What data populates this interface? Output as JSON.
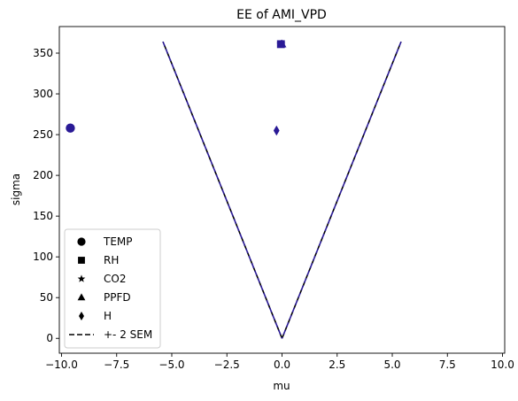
{
  "chart_data": {
    "type": "scatter",
    "title": "EE of AMI_VPD",
    "xlabel": "mu",
    "ylabel": "sigma",
    "xlim": [
      -10.1,
      10.1
    ],
    "ylim": [
      -18.2,
      382.6
    ],
    "xticks": [
      -10.0,
      -7.5,
      -5.0,
      -2.5,
      0.0,
      2.5,
      5.0,
      7.5,
      10.0
    ],
    "xtick_labels": [
      "−10.0",
      "−7.5",
      "−5.0",
      "−2.5",
      "0.0",
      "2.5",
      "5.0",
      "7.5",
      "10.0"
    ],
    "yticks": [
      0,
      50,
      100,
      150,
      200,
      250,
      300,
      350
    ],
    "ytick_labels": [
      "0",
      "50",
      "100",
      "150",
      "200",
      "250",
      "300",
      "350"
    ],
    "grid": false,
    "legend_position": "lower-left",
    "marker_color": "#2a1a96",
    "series": [
      {
        "name": "TEMP",
        "marker": "circle",
        "x": [
          -9.6
        ],
        "y": [
          258
        ]
      },
      {
        "name": "RH",
        "marker": "square",
        "x": [
          -0.05
        ],
        "y": [
          361
        ]
      },
      {
        "name": "CO2",
        "marker": "star",
        "x": [
          -0.05
        ],
        "y": [
          361
        ]
      },
      {
        "name": "PPFD",
        "marker": "triangle",
        "x": [
          0.0
        ],
        "y": [
          361
        ]
      },
      {
        "name": "H",
        "marker": "diamond",
        "x": [
          -0.25
        ],
        "y": [
          255
        ]
      }
    ],
    "sem_line": {
      "name": "+- 2 SEM",
      "style": "dashed",
      "color_dark": "#000000",
      "color_blue": "#2a1a96",
      "left": {
        "x": [
          0.0,
          -5.4
        ],
        "y": [
          0,
          364
        ]
      },
      "right": {
        "x": [
          0.0,
          5.4
        ],
        "y": [
          0,
          364
        ]
      }
    }
  }
}
